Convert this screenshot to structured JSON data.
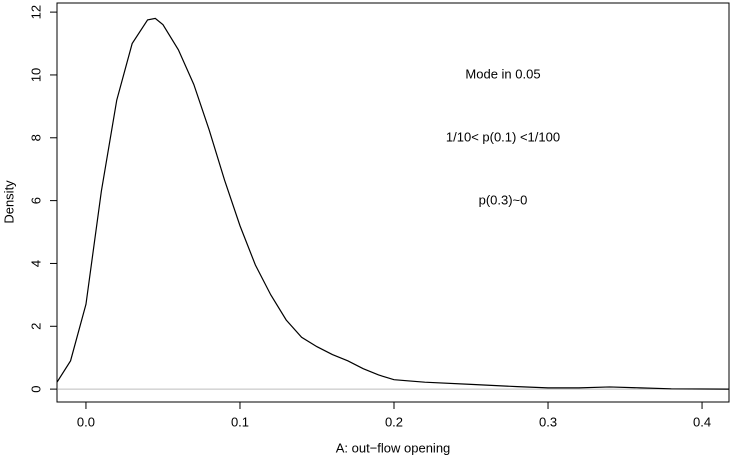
{
  "chart_data": {
    "type": "line",
    "x_label": "A: out−flow opening",
    "y_label": "Density",
    "annotations": [
      "Mode in 0.05",
      "1/10< p(0.1) <1/100",
      "p(0.3)~0"
    ],
    "xlim": [
      -0.0188,
      0.4175
    ],
    "ylim": [
      -0.41,
      12.29
    ],
    "xticks": [
      {
        "value": 0,
        "label": "0.0"
      },
      0.1,
      0.2,
      0.3,
      0.4
    ],
    "yticks": [
      0,
      2,
      4,
      6,
      8,
      10,
      12
    ],
    "hline": 0,
    "hline_color": "#bebebe",
    "x": [
      -0.0188,
      -0.01,
      0.0,
      0.01,
      0.02,
      0.03,
      0.04,
      0.045,
      0.05,
      0.06,
      0.07,
      0.08,
      0.09,
      0.1,
      0.11,
      0.12,
      0.13,
      0.14,
      0.15,
      0.16,
      0.17,
      0.18,
      0.19,
      0.2,
      0.22,
      0.25,
      0.28,
      0.3,
      0.32,
      0.34,
      0.36,
      0.38,
      0.4175
    ],
    "series": [
      {
        "color": "#000000",
        "values": [
          0.22,
          0.9,
          2.7,
          6.3,
          9.2,
          11.0,
          11.75,
          11.8,
          11.6,
          10.8,
          9.7,
          8.25,
          6.65,
          5.2,
          3.95,
          3.0,
          2.2,
          1.65,
          1.35,
          1.1,
          0.9,
          0.65,
          0.45,
          0.3,
          0.22,
          0.15,
          0.08,
          0.04,
          0.04,
          0.07,
          0.04,
          0.01,
          0.0
        ]
      }
    ]
  }
}
